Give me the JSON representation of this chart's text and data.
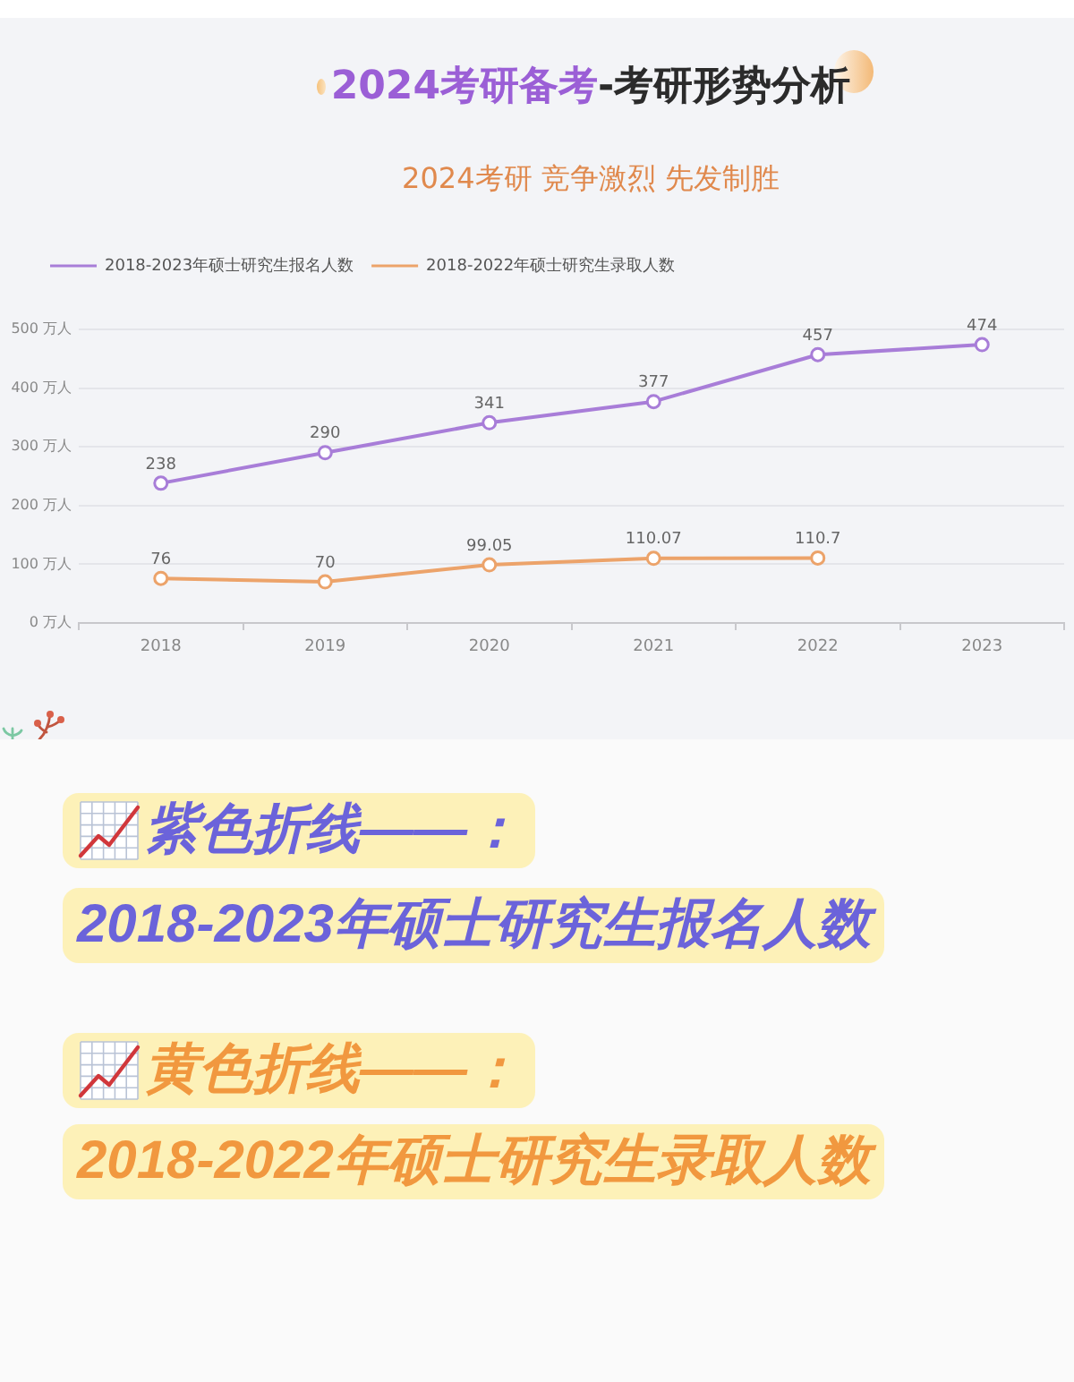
{
  "chart_data": {
    "type": "line",
    "title": "2024考研备考-考研形势分析",
    "subtitle": "2024考研 竞争激烈 先发制胜",
    "categories": [
      "2018",
      "2019",
      "2020",
      "2021",
      "2022",
      "2023"
    ],
    "series": [
      {
        "name": "2018-2023年硕士研究生报名人数",
        "color": "#a87dd8",
        "values": [
          238,
          290,
          341,
          377,
          457,
          474
        ]
      },
      {
        "name": "2018-2022年硕士研究生录取人数",
        "color": "#eca36a",
        "values": [
          76,
          70,
          99.05,
          110.07,
          110.7,
          null
        ]
      }
    ],
    "ylim": [
      0,
      500
    ],
    "yticks": [
      {
        "value": 0,
        "label": "0 万人"
      },
      {
        "value": 100,
        "label": "100 万人"
      },
      {
        "value": 200,
        "label": "200 万人"
      },
      {
        "value": 300,
        "label": "300 万人"
      },
      {
        "value": 400,
        "label": "400 万人"
      },
      {
        "value": 500,
        "label": "500 万人"
      }
    ],
    "grid": "y",
    "legend": "top left",
    "marker": "circle",
    "line_style": "solid",
    "data_labels": true,
    "annotations": [
      "紫色折线——：",
      "2018-2023年硕士研究生报名人数",
      "黄色折线——：",
      "2018-2022年硕士研究生录取人数"
    ]
  }
}
